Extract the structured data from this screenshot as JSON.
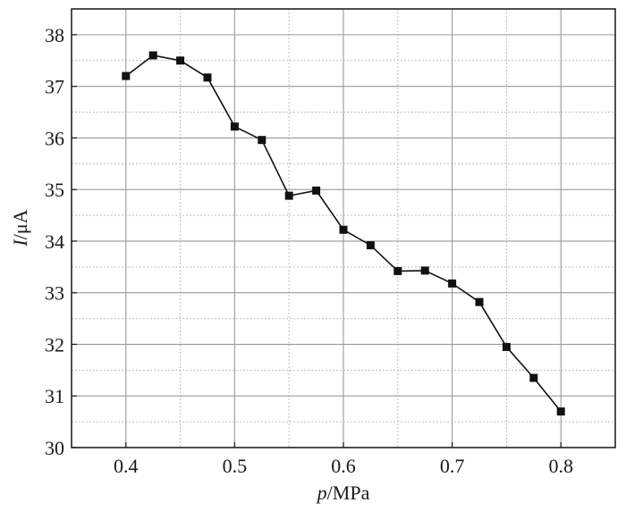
{
  "chart_data": {
    "type": "line",
    "title": "",
    "xlabel_var": "p",
    "xlabel_unit": "/MPa",
    "ylabel_var": "I",
    "ylabel_unit": "/μA",
    "xlim": [
      0.35,
      0.85
    ],
    "ylim": [
      30,
      38.5
    ],
    "x_ticks": [
      0.4,
      0.5,
      0.6,
      0.7,
      0.8
    ],
    "x_tick_labels": [
      "0.4",
      "0.5",
      "0.6",
      "0.7",
      "0.8"
    ],
    "y_ticks": [
      30,
      31,
      32,
      33,
      34,
      35,
      36,
      37,
      38
    ],
    "y_tick_labels": [
      "30",
      "31",
      "32",
      "33",
      "34",
      "35",
      "36",
      "37",
      "38"
    ],
    "grid": true,
    "marker": "square",
    "line_color": "#111111",
    "x": [
      0.4,
      0.425,
      0.45,
      0.475,
      0.5,
      0.525,
      0.55,
      0.575,
      0.6,
      0.625,
      0.65,
      0.675,
      0.7,
      0.725,
      0.75,
      0.775,
      0.8
    ],
    "y": [
      37.2,
      37.6,
      37.5,
      37.17,
      36.22,
      35.96,
      34.88,
      34.98,
      34.22,
      33.92,
      33.42,
      33.43,
      33.18,
      32.82,
      31.95,
      31.35,
      30.7
    ]
  }
}
